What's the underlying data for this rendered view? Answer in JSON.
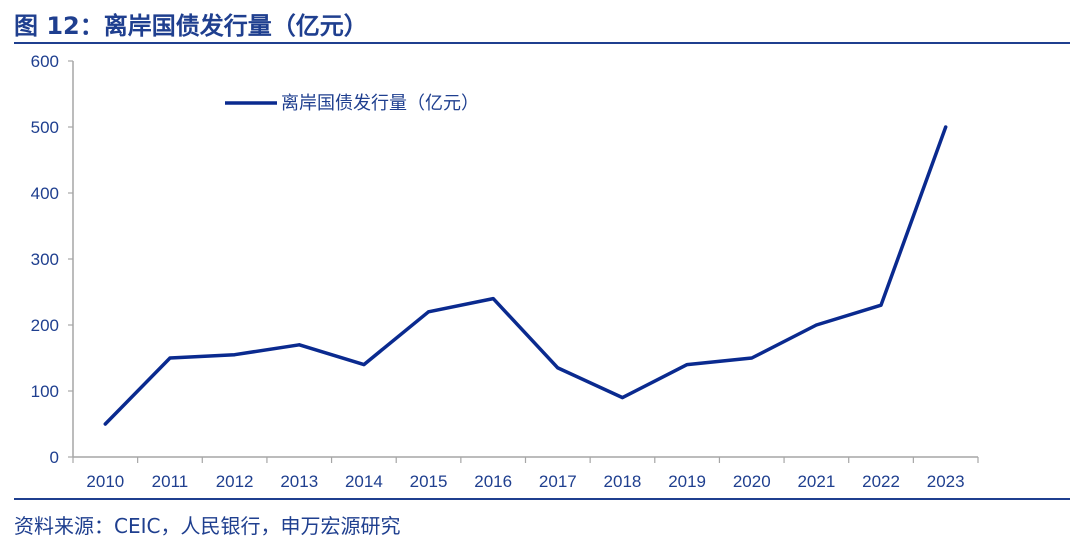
{
  "figure": {
    "title": "图 12：离岸国债发行量（亿元）",
    "source": "资料来源：CEIC，人民银行，申万宏源研究"
  },
  "colors": {
    "accent": "#1f3f8f",
    "series": "#0a2a8f",
    "axis": "#a6a6a6"
  },
  "chart_data": {
    "type": "line",
    "x": [
      "2010",
      "2011",
      "2012",
      "2013",
      "2014",
      "2015",
      "2016",
      "2017",
      "2018",
      "2019",
      "2020",
      "2021",
      "2022",
      "2023"
    ],
    "series": [
      {
        "name": "离岸国债发行量（亿元）",
        "values": [
          50,
          150,
          155,
          170,
          140,
          220,
          240,
          135,
          90,
          140,
          150,
          200,
          230,
          500
        ]
      }
    ],
    "yticks": [
      0,
      100,
      200,
      300,
      400,
      500,
      600
    ],
    "ylim": [
      0,
      600
    ],
    "grid": false,
    "legend": "top-left"
  }
}
